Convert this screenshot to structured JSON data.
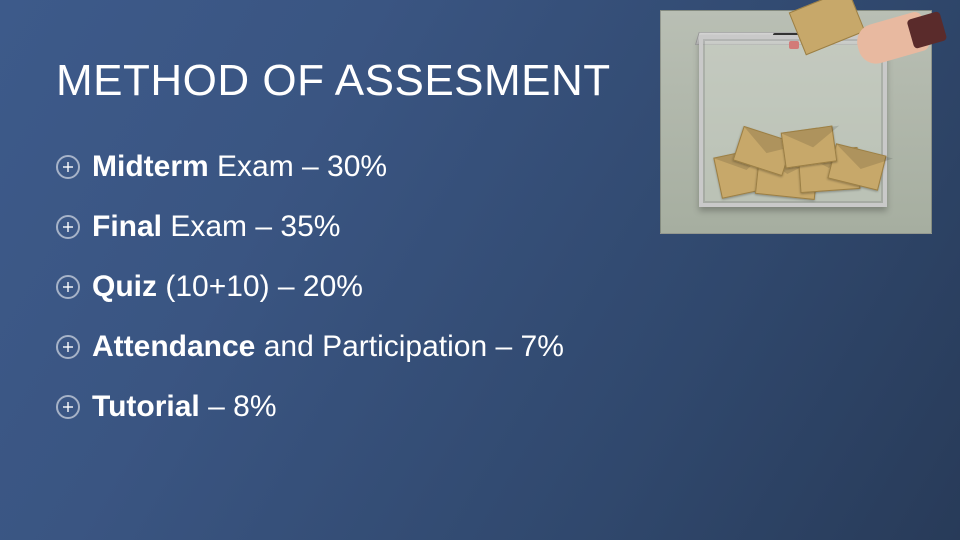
{
  "slide": {
    "title": "METHOD OF ASSESMENT",
    "background_gradient": [
      "#3d5a8a",
      "#283b59"
    ],
    "text_color": "#ffffff",
    "title_fontsize": 44,
    "bullet_fontsize": 30,
    "bullets": [
      {
        "bold": "Midterm",
        "rest": " Exam – 30%"
      },
      {
        "bold": "Final",
        "rest": " Exam – 35%"
      },
      {
        "bold": "Quiz",
        "rest": " (10+10) – 20%"
      },
      {
        "bold": "Attendance",
        "rest": " and Participation –  7%"
      },
      {
        "bold": "Tutorial",
        "rest": " – 8%"
      }
    ],
    "bullet_icon_color": "rgba(255,255,255,0.6)",
    "image": {
      "description": "ballot-box-photo",
      "envelope_color": "#c7a86a",
      "box_frame_color": "#c9c9c9",
      "background_color": "#b0b8aa"
    }
  }
}
